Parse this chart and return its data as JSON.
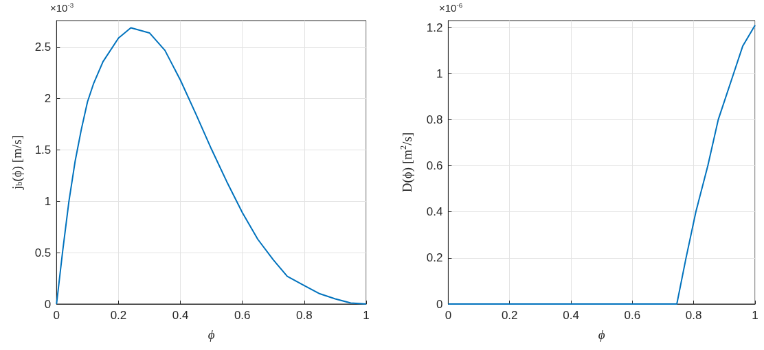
{
  "chart_data": [
    {
      "type": "line",
      "xlabel": "ϕ",
      "ylabel": "j$_{b}$(ϕ) [m/s]",
      "annotations": [
        "×10$^{-3}$"
      ],
      "x": [
        0,
        0.02,
        0.04,
        0.06,
        0.08,
        0.1,
        0.12,
        0.15,
        0.2,
        0.24,
        0.3,
        0.35,
        0.4,
        0.45,
        0.5,
        0.55,
        0.6,
        0.65,
        0.7,
        0.745,
        0.8,
        0.85,
        0.9,
        0.95,
        1
      ],
      "series": [
        {
          "color": "#0072bd",
          "values": [
            0,
            0.52,
            1.0,
            1.39,
            1.7,
            1.97,
            2.15,
            2.36,
            2.59,
            2.69,
            2.64,
            2.47,
            2.18,
            1.85,
            1.51,
            1.19,
            0.89,
            0.63,
            0.43,
            0.27,
            0.18,
            0.1,
            0.05,
            0.01,
            0
          ]
        }
      ],
      "xlim": [
        0,
        1
      ],
      "xticks": [
        0,
        0.2,
        0.4,
        0.6,
        0.8,
        1
      ],
      "ylim": [
        0,
        2.76
      ],
      "yticks": [
        0,
        0.5,
        1,
        1.5,
        2,
        2.5
      ],
      "grid": true
    },
    {
      "type": "line",
      "xlabel": "ϕ",
      "ylabel": "D(ϕ) [m$^{2}$/s]",
      "annotations": [
        "×10$^{-6}$"
      ],
      "x": [
        0,
        0.2,
        0.4,
        0.6,
        0.745,
        0.775,
        0.807,
        0.846,
        0.88,
        0.93,
        0.96,
        1
      ],
      "series": [
        {
          "color": "#0072bd",
          "values": [
            0,
            0,
            0,
            0,
            0,
            0.2,
            0.4,
            0.6,
            0.8,
            1.0,
            1.12,
            1.21
          ]
        }
      ],
      "xlim": [
        0,
        1
      ],
      "xticks": [
        0,
        0.2,
        0.4,
        0.6,
        0.8,
        1
      ],
      "ylim": [
        0,
        1.23
      ],
      "yticks": [
        0,
        0.2,
        0.4,
        0.6,
        0.8,
        1,
        1.2
      ],
      "grid": true
    }
  ]
}
